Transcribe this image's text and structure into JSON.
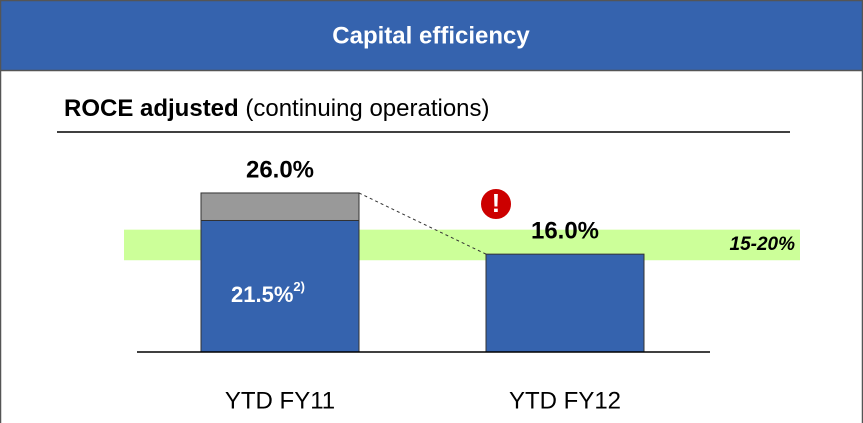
{
  "chart_data": {
    "type": "stacked_bar",
    "title": "Capital efficiency",
    "subtitle": {
      "bold": "ROCE adjusted",
      "rest": " (continuing operations)"
    },
    "categories": [
      "YTD FY11",
      "YTD FY12"
    ],
    "series": [
      {
        "color": "#3563ae",
        "values": [
          21.5,
          16.0
        ],
        "value_labels": [
          "21.5%",
          null
        ],
        "footnote_marks": [
          "2)",
          null
        ]
      },
      {
        "color": "#999999",
        "values": [
          4.5,
          null
        ]
      }
    ],
    "total_labels": [
      "26.0%",
      "16.0%"
    ],
    "target_band": {
      "range": [
        15,
        20
      ],
      "label": "15-20%",
      "color": "#ccff99"
    },
    "alert": "!",
    "ylim": [
      0,
      30
    ]
  }
}
